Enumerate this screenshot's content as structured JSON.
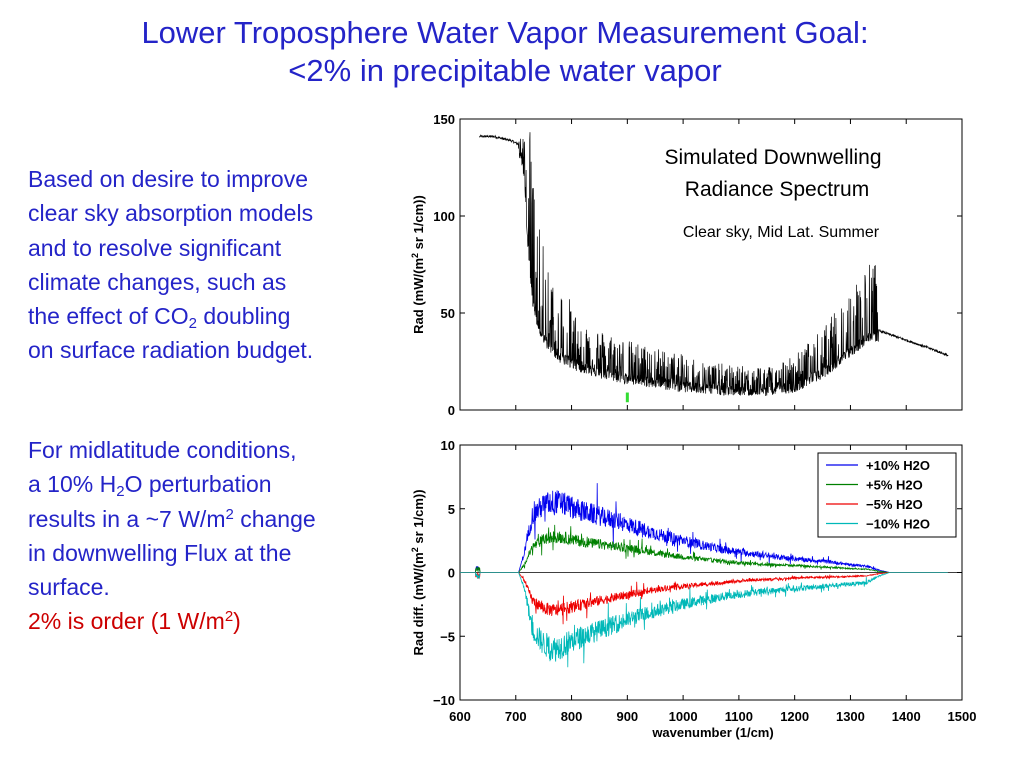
{
  "slide": {
    "title_line1": "Lower Troposphere Water Vapor Measurement Goal:",
    "title_line2": "<2% in precipitable water vapor",
    "para1": {
      "line1": "Based on desire to improve",
      "line2": "clear sky absorption models",
      "line3": "and to resolve significant",
      "line4": "climate changes, such as",
      "line5_pre": "the effect of CO",
      "line5_sub": "2",
      "line5_post": " doubling",
      "line6": "on surface radiation budget."
    },
    "para2": {
      "line1": "For midlatitude conditions,",
      "line2_pre": "a 10% H",
      "line2_sub": "2",
      "line2_post": "O perturbation",
      "line3_pre": "results in a ~7 W/m",
      "line3_sup": "2",
      "line3_post": " change",
      "line4": "in downwelling Flux at the",
      "line5": "surface.",
      "line6_pre": "2% is order (1 W/m",
      "line6_sup": "2",
      "line6_post": ")"
    }
  },
  "chart_data": [
    {
      "type": "line",
      "annotation_line1": "Simulated Downwelling",
      "annotation_line2": "Radiance Spectrum",
      "annotation_line3": "Clear sky, Mid Lat. Summer",
      "ylabel": "Rad (mW/(m2 sr 1/cm))",
      "xlim": [
        600,
        1500
      ],
      "ylim": [
        0,
        150
      ],
      "y_ticks": [
        0,
        50,
        100,
        150
      ],
      "x_tick_positions": [
        600,
        700,
        800,
        900,
        1000,
        1100,
        1200,
        1300,
        1400,
        1500
      ],
      "grid": false,
      "color": "#000000",
      "marker": {
        "x": 900,
        "y_low": 4,
        "y_high": 9,
        "color": "#33dd33"
      },
      "series": [
        {
          "x": [
            635,
            660,
            690,
            705,
            715,
            720,
            730,
            740,
            750,
            760,
            780,
            800,
            850,
            900,
            950,
            1000,
            1050,
            1100,
            1150,
            1200,
            1250,
            1300,
            1330,
            1350,
            1400,
            1450,
            1475
          ],
          "y": [
            141,
            141,
            139,
            137,
            126,
            95,
            60,
            46,
            40,
            36,
            30,
            27,
            22,
            19,
            17,
            15,
            13,
            12,
            12,
            15,
            22,
            33,
            40,
            41,
            36,
            31,
            28
          ]
        }
      ]
    },
    {
      "type": "line",
      "xlabel": "wavenumber (1/cm)",
      "ylabel": "Rad diff. (mW/(m2 sr 1/cm))",
      "xlim": [
        600,
        1500
      ],
      "ylim": [
        -10,
        10
      ],
      "x_ticks": [
        600,
        700,
        800,
        900,
        1000,
        1100,
        1200,
        1300,
        1400,
        1500
      ],
      "y_ticks": [
        -10,
        -5,
        0,
        5,
        10
      ],
      "grid": false,
      "legend": "top-right",
      "series": [
        {
          "name": "+10% H2O",
          "color": "#0000ee",
          "x": [
            600,
            625,
            640,
            680,
            705,
            715,
            730,
            750,
            770,
            790,
            820,
            870,
            920,
            970,
            1020,
            1070,
            1120,
            1170,
            1220,
            1270,
            1300,
            1330,
            1350,
            1370,
            1400,
            1450,
            1475
          ],
          "y": [
            0,
            0,
            0,
            0,
            0,
            1.5,
            4.5,
            5.3,
            5.6,
            5.3,
            4.8,
            4.2,
            3.5,
            2.8,
            2.3,
            1.8,
            1.5,
            1.2,
            1.0,
            0.8,
            0.6,
            0.5,
            0.2,
            0,
            0,
            0,
            0
          ]
        },
        {
          "name": "+5% H2O",
          "color": "#008000",
          "x": [
            600,
            625,
            640,
            680,
            705,
            715,
            730,
            750,
            770,
            790,
            820,
            870,
            920,
            970,
            1020,
            1070,
            1120,
            1170,
            1220,
            1270,
            1300,
            1330,
            1350,
            1370,
            1400,
            1450,
            1475
          ],
          "y": [
            0,
            0,
            0,
            0,
            0,
            0.6,
            2.0,
            2.6,
            2.8,
            2.7,
            2.4,
            2.1,
            1.8,
            1.4,
            1.1,
            0.9,
            0.7,
            0.6,
            0.5,
            0.4,
            0.3,
            0.25,
            0.1,
            0,
            0,
            0,
            0
          ]
        },
        {
          "name": "−5% H2O",
          "color": "#ee0000",
          "x": [
            600,
            625,
            640,
            680,
            705,
            715,
            730,
            750,
            770,
            790,
            820,
            870,
            920,
            970,
            1020,
            1070,
            1120,
            1170,
            1220,
            1270,
            1300,
            1330,
            1350,
            1370,
            1400,
            1450,
            1475
          ],
          "y": [
            0,
            0,
            0,
            0,
            0,
            -0.6,
            -2.2,
            -2.8,
            -3.0,
            -2.8,
            -2.5,
            -2.0,
            -1.6,
            -1.2,
            -1.0,
            -0.8,
            -0.6,
            -0.5,
            -0.4,
            -0.35,
            -0.3,
            -0.25,
            -0.1,
            0,
            0,
            0,
            0
          ]
        },
        {
          "name": "−10% H2O",
          "color": "#00b8b8",
          "x": [
            600,
            625,
            640,
            680,
            705,
            715,
            730,
            750,
            770,
            790,
            820,
            870,
            920,
            970,
            1020,
            1070,
            1120,
            1170,
            1220,
            1270,
            1300,
            1330,
            1350,
            1370,
            1400,
            1450,
            1475
          ],
          "y": [
            0,
            0,
            0,
            0,
            0,
            -1.2,
            -4.5,
            -5.6,
            -6.0,
            -5.6,
            -5.0,
            -4.2,
            -3.4,
            -2.8,
            -2.3,
            -1.9,
            -1.6,
            -1.4,
            -1.2,
            -1.0,
            -0.9,
            -0.8,
            -0.3,
            0,
            0,
            0,
            0
          ]
        }
      ]
    }
  ]
}
